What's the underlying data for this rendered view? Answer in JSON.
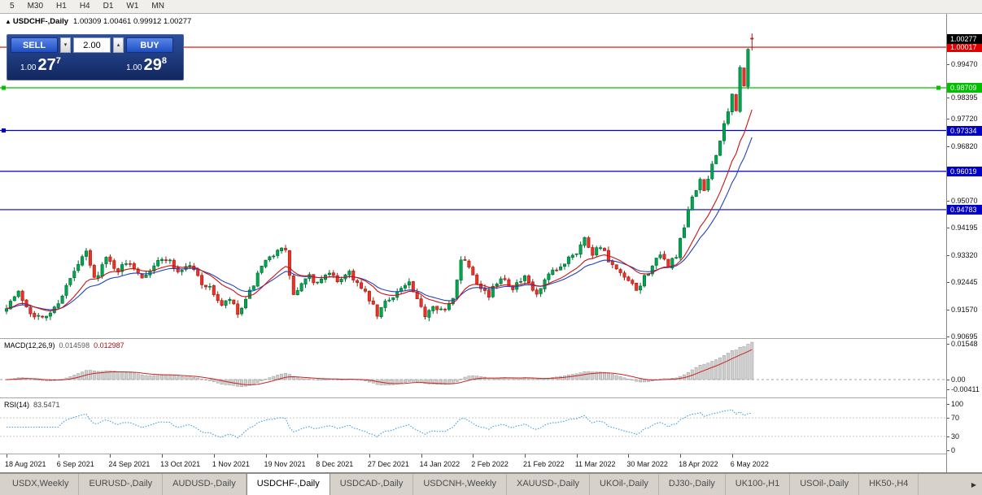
{
  "toolbar": {
    "timeframes": [
      "5",
      "M30",
      "H1",
      "H4",
      "D1",
      "W1",
      "MN"
    ]
  },
  "chart_info": {
    "collapse_icon": "▲",
    "title": "USDCHF-,Daily",
    "ohlc": "1.00309 1.00461 0.99912 1.00277"
  },
  "one_click": {
    "sell_label": "SELL",
    "buy_label": "BUY",
    "volume": "2.00",
    "spin_up_icon": "▴",
    "spin_down_icon": "▾",
    "sell_price": {
      "prefix": "1.00",
      "big": "27",
      "sup": "7"
    },
    "buy_price": {
      "prefix": "1.00",
      "big": "29",
      "sup": "8"
    }
  },
  "macd_panel": {
    "name": "MACD(12,26,9)",
    "value_main": "0.014598",
    "value_signal": "0.012987",
    "axis_labels": [
      "0.01548",
      "0.00",
      "-0.00411"
    ]
  },
  "rsi_panel": {
    "name": "RSI(14)",
    "value": "83.5471",
    "axis_labels": [
      "100",
      "70",
      "30",
      "0"
    ]
  },
  "tabs": {
    "items": [
      "USDX,Weekly",
      "EURUSD-,Daily",
      "AUDUSD-,Daily",
      "USDCHF-,Daily",
      "USDCAD-,Daily",
      "USDCNH-,Weekly",
      "XAUUSD-,Daily",
      "UKOil-,Daily",
      "DJ30-,Daily",
      "UK100-,H1",
      "USOil-,Daily",
      "HK50-,H4"
    ],
    "active": "USDCHF-,Daily",
    "scroll_icon": "▶"
  },
  "chart_data": {
    "type": "candlestick",
    "symbol": "USDCHF-",
    "timeframe": "Daily",
    "bar_count": 188,
    "last_bar": {
      "open": 1.00309,
      "high": 1.00461,
      "low": 0.99912,
      "close": 1.00277
    },
    "x_labels": [
      "18 Aug 2021",
      "6 Sep 2021",
      "24 Sep 2021",
      "13 Oct 2021",
      "1 Nov 2021",
      "19 Nov 2021",
      "8 Dec 2021",
      "27 Dec 2021",
      "14 Jan 2022",
      "2 Feb 2022",
      "21 Feb 2022",
      "11 Mar 2022",
      "30 Mar 2022",
      "18 Apr 2022",
      "6 May 2022"
    ],
    "y_ticks": [
      "0.99470",
      "0.98395",
      "0.97720",
      "0.96820",
      "0.95070",
      "0.94195",
      "0.93320",
      "0.92445",
      "0.91570",
      "0.90695"
    ],
    "current_price": {
      "label": "1.00277",
      "value": 1.00277,
      "box_color": "#000000"
    },
    "levels": [
      {
        "label": "1.00017",
        "value": 1.00017,
        "color": "#e00000",
        "markers": []
      },
      {
        "label": "0.98709",
        "value": 0.98709,
        "color": "#00c000",
        "markers": [
          "left",
          "right"
        ]
      },
      {
        "label": "0.97334",
        "value": 0.97334,
        "color": "#0000c8",
        "markers": [
          "left"
        ]
      },
      {
        "label": "0.96019",
        "value": 0.96019,
        "color": "#0000c8",
        "markers": []
      },
      {
        "label": "0.94783",
        "value": 0.94783,
        "color": "#0000c8",
        "markers": []
      }
    ],
    "price_anchors": [
      [
        0,
        0.917
      ],
      [
        3,
        0.921
      ],
      [
        6,
        0.915
      ],
      [
        9,
        0.9125
      ],
      [
        12,
        0.916
      ],
      [
        15,
        0.923
      ],
      [
        18,
        0.93
      ],
      [
        20,
        0.934
      ],
      [
        22,
        0.9255
      ],
      [
        25,
        0.932
      ],
      [
        28,
        0.9285
      ],
      [
        31,
        0.931
      ],
      [
        34,
        0.9265
      ],
      [
        37,
        0.93
      ],
      [
        40,
        0.9325
      ],
      [
        43,
        0.928
      ],
      [
        46,
        0.93
      ],
      [
        49,
        0.9245
      ],
      [
        52,
        0.921
      ],
      [
        54,
        0.9165
      ],
      [
        56,
        0.919
      ],
      [
        58,
        0.914
      ],
      [
        60,
        0.918
      ],
      [
        62,
        0.924
      ],
      [
        64,
        0.929
      ],
      [
        66,
        0.932
      ],
      [
        68,
        0.9355
      ],
      [
        70,
        0.934
      ],
      [
        72,
        0.92
      ],
      [
        74,
        0.9235
      ],
      [
        76,
        0.926
      ],
      [
        78,
        0.924
      ],
      [
        80,
        0.9275
      ],
      [
        83,
        0.925
      ],
      [
        86,
        0.928
      ],
      [
        89,
        0.922
      ],
      [
        91,
        0.919
      ],
      [
        93,
        0.9135
      ],
      [
        95,
        0.918
      ],
      [
        98,
        0.9215
      ],
      [
        101,
        0.924
      ],
      [
        103,
        0.918
      ],
      [
        105,
        0.914
      ],
      [
        107,
        0.9175
      ],
      [
        110,
        0.915
      ],
      [
        112,
        0.919
      ],
      [
        114,
        0.9325
      ],
      [
        116,
        0.93
      ],
      [
        118,
        0.925
      ],
      [
        121,
        0.92
      ],
      [
        124,
        0.9265
      ],
      [
        127,
        0.923
      ],
      [
        130,
        0.9255
      ],
      [
        133,
        0.92
      ],
      [
        136,
        0.9265
      ],
      [
        139,
        0.929
      ],
      [
        141,
        0.933
      ],
      [
        143,
        0.9345
      ],
      [
        145,
        0.9385
      ],
      [
        147,
        0.934
      ],
      [
        149,
        0.9365
      ],
      [
        151,
        0.931
      ],
      [
        153,
        0.928
      ],
      [
        156,
        0.9245
      ],
      [
        158,
        0.9215
      ],
      [
        160,
        0.926
      ],
      [
        162,
        0.93
      ],
      [
        164,
        0.9325
      ],
      [
        166,
        0.93
      ],
      [
        168,
        0.933
      ],
      [
        170,
        0.942
      ],
      [
        172,
        0.952
      ],
      [
        174,
        0.9575
      ],
      [
        175,
        0.953
      ],
      [
        177,
        0.9625
      ],
      [
        179,
        0.97
      ],
      [
        181,
        0.979
      ],
      [
        182,
        0.9845
      ],
      [
        183,
        0.9805
      ],
      [
        184,
        0.993
      ],
      [
        185,
        0.9875
      ],
      [
        186,
        0.999
      ],
      [
        187,
        1.0028
      ]
    ],
    "colors": {
      "up": "#00a651",
      "up_stroke": "#00692f",
      "down": "#ee3124",
      "down_stroke": "#9c1c12",
      "ma_fast": "#cc1111",
      "ma_slow": "#2244bb",
      "macd_hist": "#cfcfcf",
      "macd_hist_stroke": "#9a9a9a",
      "macd_signal": "#cc2222",
      "rsi_line": "#3aa0dc"
    },
    "indicators": {
      "macd": {
        "fast": 12,
        "slow": 26,
        "signal": 9
      },
      "rsi": {
        "period": 14,
        "levels": [
          70,
          30
        ]
      },
      "ma_fast_period": 13,
      "ma_slow_period": 20
    }
  }
}
